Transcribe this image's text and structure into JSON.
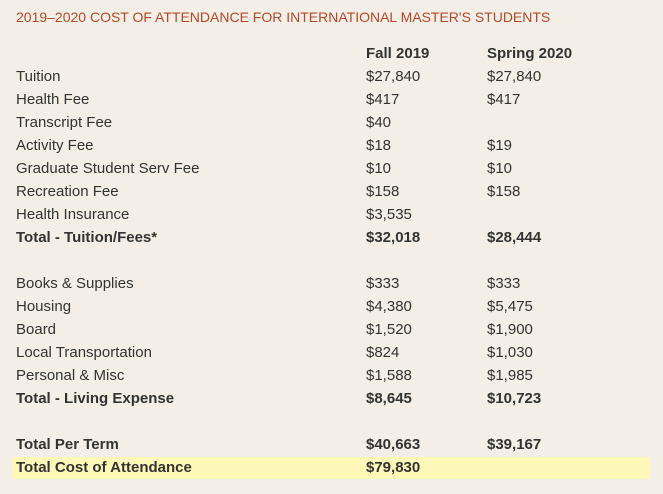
{
  "title": "2019–2020 COST OF ATTENDANCE FOR INTERNATIONAL MASTER'S STUDENTS",
  "table": {
    "columns": [
      "Fall 2019",
      "Spring 2020"
    ],
    "groups": [
      {
        "rows": [
          {
            "label": "Tuition",
            "values": [
              "$27,840",
              "$27,840"
            ]
          },
          {
            "label": "Health Fee",
            "values": [
              "$417",
              "$417"
            ]
          },
          {
            "label": "Transcript Fee",
            "values": [
              "$40",
              null
            ]
          },
          {
            "label": "Activity Fee",
            "values": [
              "$18",
              "$19"
            ]
          },
          {
            "label": "Graduate Student Serv Fee",
            "values": [
              "$10",
              "$10"
            ]
          },
          {
            "label": "Recreation Fee",
            "values": [
              "$158",
              "$158"
            ]
          },
          {
            "label": "Health Insurance",
            "values": [
              "$3,535",
              null
            ]
          },
          {
            "label": "Total - Tuition/Fees*",
            "values": [
              "$32,018",
              "$28,444"
            ],
            "bold": true
          }
        ]
      },
      {
        "rows": [
          {
            "label": "Books & Supplies",
            "values": [
              "$333",
              "$333"
            ]
          },
          {
            "label": "Housing",
            "values": [
              "$4,380",
              "$5,475"
            ]
          },
          {
            "label": "Board",
            "values": [
              "$1,520",
              "$1,900"
            ]
          },
          {
            "label": "Local Transportation",
            "values": [
              "$824",
              "$1,030"
            ]
          },
          {
            "label": "Personal & Misc",
            "values": [
              "$1,588",
              "$1,985"
            ]
          },
          {
            "label": "Total - Living Expense",
            "values": [
              "$8,645",
              "$10,723"
            ],
            "bold": true
          }
        ]
      },
      {
        "rows": [
          {
            "label": "Total Per Term",
            "values": [
              "$40,663",
              "$39,167"
            ],
            "bold": true
          },
          {
            "label": "Total Cost of Attendance",
            "values": [
              "$79,830",
              null
            ],
            "bold": true,
            "highlight": true
          }
        ]
      }
    ]
  }
}
